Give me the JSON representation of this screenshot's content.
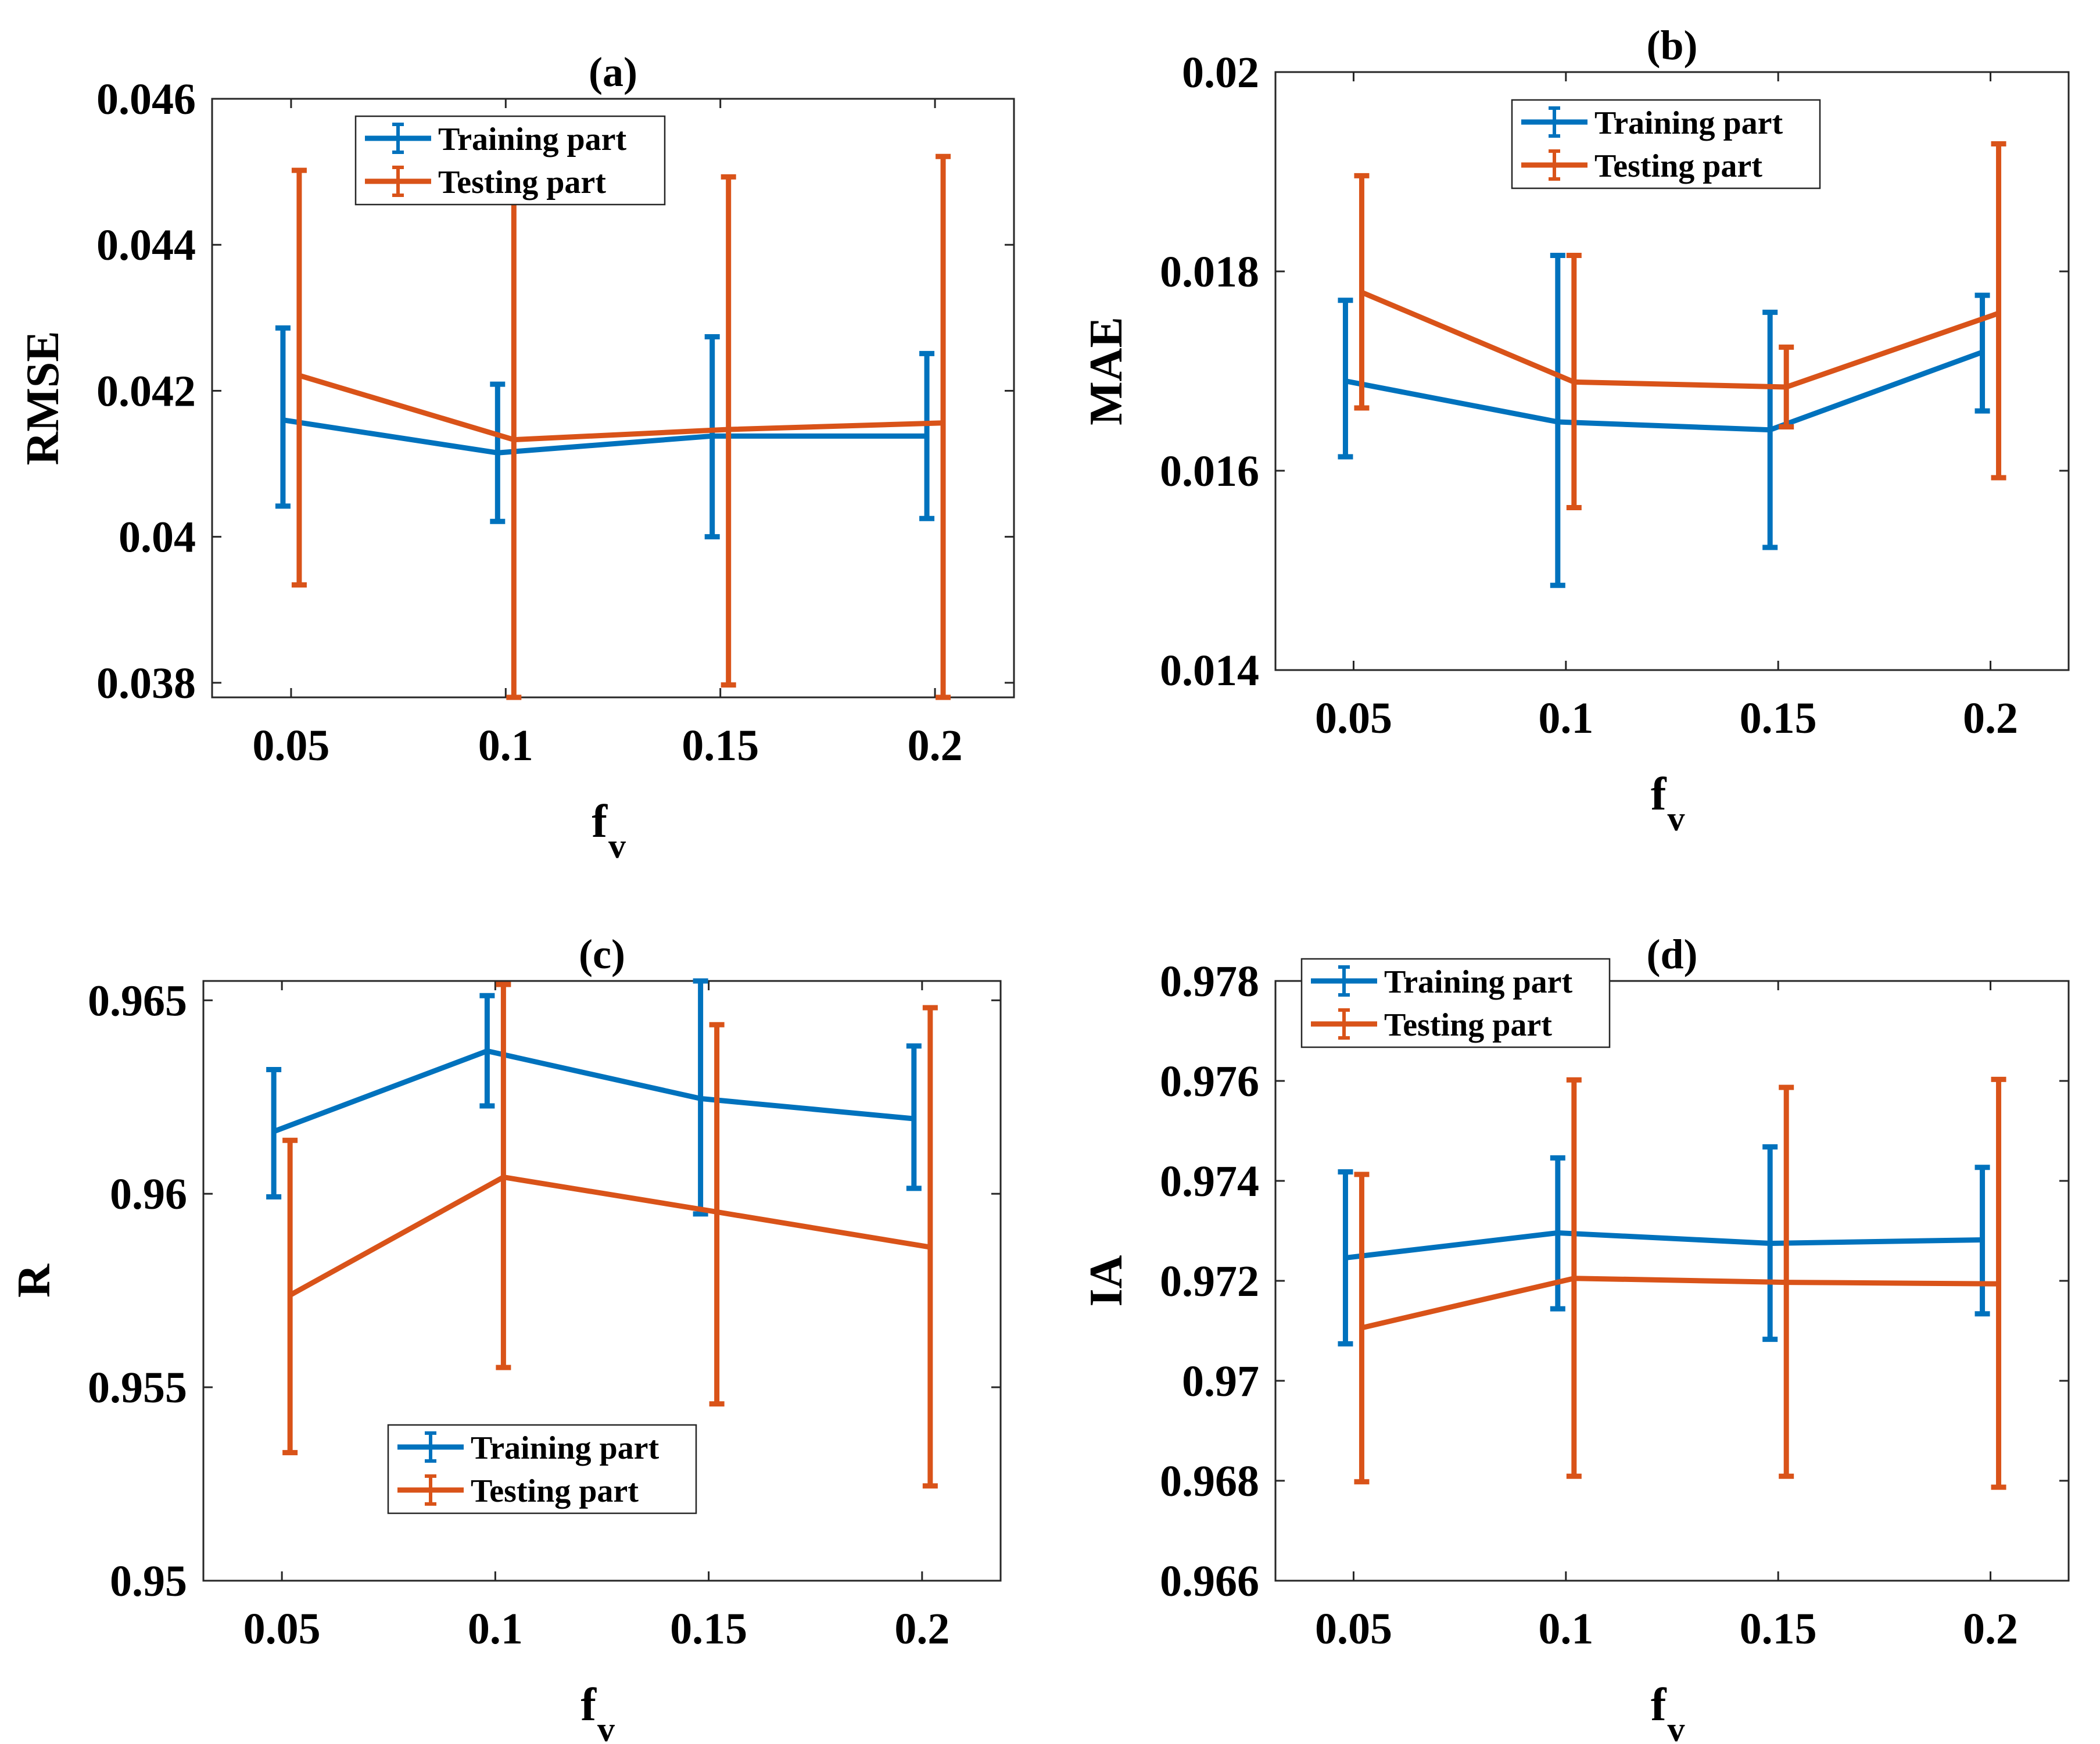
{
  "colors": {
    "training": "#0072BD",
    "testing": "#D95319"
  },
  "legend_labels": [
    "Training part",
    "Testing part"
  ],
  "chart_data": [
    {
      "id": "a",
      "type": "line",
      "title": "(a)",
      "xlabel_main": "f",
      "xlabel_sub": "v",
      "ylabel": "RMSE",
      "categories": [
        "0.05",
        "0.1",
        "0.15",
        "0.2"
      ],
      "x": [
        0.05,
        0.1,
        0.15,
        0.2
      ],
      "xlim": [
        0.0316,
        0.2184
      ],
      "ylim": [
        0.0378,
        0.046
      ],
      "yticks": [
        0.038,
        0.04,
        0.042,
        0.044,
        0.046
      ],
      "ytick_labels": [
        "0.038",
        "0.04",
        "0.042",
        "0.044",
        "0.046"
      ],
      "legend_position": "top-center",
      "grid": true,
      "series": [
        {
          "name": "Training part",
          "values": [
            0.0416,
            0.04115,
            0.04138,
            0.04138
          ],
          "lower": [
            0.04042,
            0.04021,
            0.04,
            0.04025
          ],
          "upper": [
            0.04286,
            0.04209,
            0.04274,
            0.04251
          ]
        },
        {
          "name": "Testing part",
          "values": [
            0.04221,
            0.04133,
            0.04147,
            0.04156
          ],
          "lower": [
            0.03934,
            0.0378,
            0.03797,
            0.0378
          ],
          "upper": [
            0.04502,
            0.0446,
            0.04493,
            0.04521
          ]
        }
      ]
    },
    {
      "id": "b",
      "type": "line",
      "title": "(b)",
      "xlabel_main": "f",
      "xlabel_sub": "v",
      "ylabel": "MAE",
      "categories": [
        "0.05",
        "0.1",
        "0.15",
        "0.2"
      ],
      "x": [
        0.05,
        0.1,
        0.15,
        0.2
      ],
      "xlim": [
        0.0316,
        0.2184
      ],
      "ylim": [
        0.014,
        0.02
      ],
      "yticks": [
        0.014,
        0.016,
        0.018,
        0.02
      ],
      "ytick_labels": [
        "0.014",
        "0.016",
        "0.018",
        "0.02"
      ],
      "legend_position": "top-center",
      "grid": true,
      "series": [
        {
          "name": "Training part",
          "values": [
            0.0169,
            0.01649,
            0.01641,
            0.01719
          ],
          "lower": [
            0.01614,
            0.01485,
            0.01523,
            0.0166
          ],
          "upper": [
            0.01771,
            0.01816,
            0.01759,
            0.01776
          ]
        },
        {
          "name": "Testing part",
          "values": [
            0.01779,
            0.01689,
            0.01684,
            0.01758
          ],
          "lower": [
            0.01663,
            0.01563,
            0.01644,
            0.01593
          ],
          "upper": [
            0.01896,
            0.01816,
            0.01724,
            0.01928
          ]
        }
      ]
    },
    {
      "id": "c",
      "type": "line",
      "title": "(c)",
      "xlabel_main": "f",
      "xlabel_sub": "v",
      "ylabel": "R",
      "categories": [
        "0.05",
        "0.1",
        "0.15",
        "0.2"
      ],
      "x": [
        0.05,
        0.1,
        0.15,
        0.2
      ],
      "xlim": [
        0.0316,
        0.2184
      ],
      "ylim": [
        0.95,
        0.9655
      ],
      "yticks": [
        0.95,
        0.955,
        0.96,
        0.965
      ],
      "ytick_labels": [
        "0.95",
        "0.955",
        "0.96",
        "0.965"
      ],
      "legend_position": "bottom-center",
      "grid": true,
      "series": [
        {
          "name": "Training part",
          "values": [
            0.96161,
            0.96369,
            0.96246,
            0.96194
          ],
          "lower": [
            0.95992,
            0.96227,
            0.95948,
            0.96014
          ],
          "upper": [
            0.96321,
            0.96512,
            0.96552,
            0.96382
          ]
        },
        {
          "name": "Testing part",
          "values": [
            0.95738,
            0.96043,
            0.95953,
            0.95862
          ],
          "lower": [
            0.95331,
            0.95551,
            0.95457,
            0.95245
          ],
          "upper": [
            0.96138,
            0.96541,
            0.96437,
            0.96481
          ]
        }
      ]
    },
    {
      "id": "d",
      "type": "line",
      "title": "(d)",
      "xlabel_main": "f",
      "xlabel_sub": "v",
      "ylabel": "IA",
      "categories": [
        "0.05",
        "0.1",
        "0.15",
        "0.2"
      ],
      "x": [
        0.05,
        0.1,
        0.15,
        0.2
      ],
      "xlim": [
        0.0316,
        0.2184
      ],
      "ylim": [
        0.966,
        0.978
      ],
      "yticks": [
        0.966,
        0.968,
        0.97,
        0.972,
        0.974,
        0.976,
        0.978
      ],
      "ytick_labels": [
        "0.966",
        "0.968",
        "0.97",
        "0.972",
        "0.974",
        "0.976",
        "0.978"
      ],
      "legend_position": "top-left",
      "grid": true,
      "series": [
        {
          "name": "Training part",
          "values": [
            0.97246,
            0.97296,
            0.97275,
            0.97282
          ],
          "lower": [
            0.97074,
            0.97144,
            0.97083,
            0.97134
          ],
          "upper": [
            0.97418,
            0.97446,
            0.97468,
            0.97427
          ]
        },
        {
          "name": "Testing part",
          "values": [
            0.97106,
            0.97205,
            0.97197,
            0.97194
          ],
          "lower": [
            0.96798,
            0.96809,
            0.96809,
            0.96787
          ],
          "upper": [
            0.97413,
            0.97602,
            0.97587,
            0.97603
          ]
        }
      ]
    }
  ]
}
